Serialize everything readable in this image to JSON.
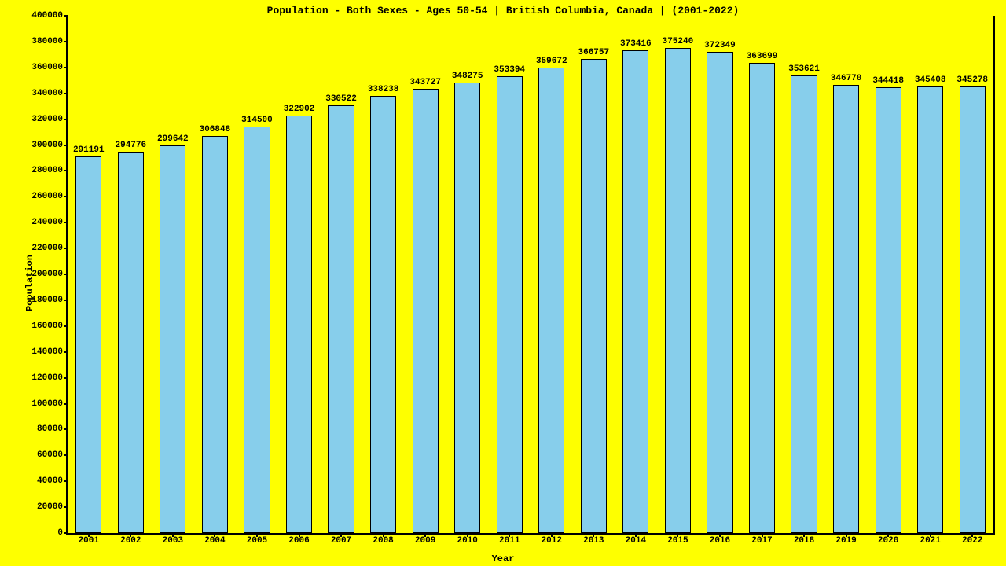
{
  "chart": {
    "type": "bar",
    "title": "Population - Both Sexes - Ages 50-54 | British Columbia, Canada |  (2001-2022)",
    "xlabel": "Year",
    "ylabel": "Population",
    "background_color": "#feff00",
    "bar_color": "#87ceeb",
    "bar_border_color": "#000000",
    "axis_color": "#000000",
    "text_color": "#000000",
    "title_fontsize": 13,
    "label_fontsize": 12,
    "tick_fontsize": 11,
    "ylim": [
      0,
      400000
    ],
    "ytick_step": 20000,
    "bar_width_ratio": 0.62,
    "categories": [
      "2001",
      "2002",
      "2003",
      "2004",
      "2005",
      "2006",
      "2007",
      "2008",
      "2009",
      "2010",
      "2011",
      "2012",
      "2013",
      "2014",
      "2015",
      "2016",
      "2017",
      "2018",
      "2019",
      "2020",
      "2021",
      "2022"
    ],
    "values": [
      291191,
      294776,
      299642,
      306848,
      314500,
      322902,
      330522,
      338238,
      343727,
      348275,
      353394,
      359672,
      366757,
      373416,
      375240,
      372349,
      363699,
      353621,
      346770,
      344418,
      345408,
      345278
    ]
  }
}
